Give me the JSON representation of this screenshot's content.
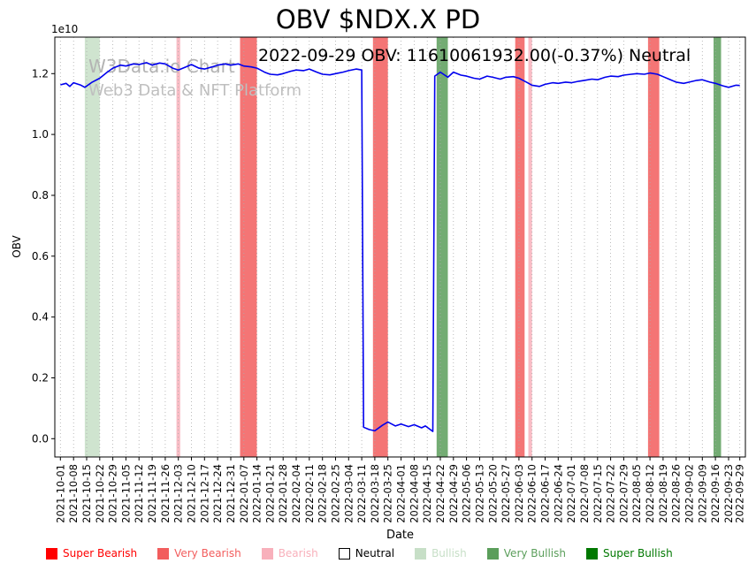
{
  "watermark": {
    "line1": "W3Data.io Chart",
    "line2": "Web3 Data & NFT Platform"
  },
  "chart_data": {
    "type": "line",
    "title": "OBV $NDX.X PD",
    "subtitle": "2022-09-29 OBV: 11610061932.00(-0.37%) Neutral",
    "xlabel": "Date",
    "ylabel": "OBV",
    "y_offset_label": "1e10",
    "y_unit_multiplier": 10000000000,
    "ylim": [
      -0.06,
      1.32
    ],
    "yticks": [
      0.0,
      0.2,
      0.4,
      0.6,
      0.8,
      1.0,
      1.2
    ],
    "xlim": [
      "2021-09-28",
      "2022-10-02"
    ],
    "grid": "vertical-dotted",
    "legend_position": "bottom",
    "x_tick_dates": [
      "2021-10-01",
      "2021-10-08",
      "2021-10-15",
      "2021-10-22",
      "2021-10-29",
      "2021-11-05",
      "2021-11-12",
      "2021-11-19",
      "2021-11-26",
      "2021-12-03",
      "2021-12-10",
      "2021-12-17",
      "2021-12-24",
      "2021-12-31",
      "2022-01-07",
      "2022-01-14",
      "2022-01-21",
      "2022-01-28",
      "2022-02-04",
      "2022-02-11",
      "2022-02-18",
      "2022-02-25",
      "2022-03-04",
      "2022-03-11",
      "2022-03-18",
      "2022-03-25",
      "2022-04-01",
      "2022-04-08",
      "2022-04-15",
      "2022-04-22",
      "2022-04-29",
      "2022-05-06",
      "2022-05-13",
      "2022-05-20",
      "2022-05-27",
      "2022-06-03",
      "2022-06-10",
      "2022-06-17",
      "2022-06-24",
      "2022-07-01",
      "2022-07-08",
      "2022-07-15",
      "2022-07-22",
      "2022-07-29",
      "2022-08-05",
      "2022-08-12",
      "2022-08-19",
      "2022-08-26",
      "2022-09-02",
      "2022-09-09",
      "2022-09-16",
      "2022-09-23",
      "2022-09-29"
    ],
    "series": [
      {
        "name": "OBV",
        "color": "#0000ee",
        "points": [
          [
            "2021-10-01",
            1.163
          ],
          [
            "2021-10-04",
            1.168
          ],
          [
            "2021-10-06",
            1.158
          ],
          [
            "2021-10-08",
            1.17
          ],
          [
            "2021-10-12",
            1.162
          ],
          [
            "2021-10-14",
            1.155
          ],
          [
            "2021-10-18",
            1.172
          ],
          [
            "2021-10-22",
            1.185
          ],
          [
            "2021-10-26",
            1.205
          ],
          [
            "2021-10-29",
            1.218
          ],
          [
            "2021-11-02",
            1.228
          ],
          [
            "2021-11-05",
            1.225
          ],
          [
            "2021-11-09",
            1.232
          ],
          [
            "2021-11-12",
            1.23
          ],
          [
            "2021-11-16",
            1.236
          ],
          [
            "2021-11-19",
            1.228
          ],
          [
            "2021-11-23",
            1.235
          ],
          [
            "2021-11-26",
            1.232
          ],
          [
            "2021-11-30",
            1.218
          ],
          [
            "2021-12-03",
            1.212
          ],
          [
            "2021-12-07",
            1.222
          ],
          [
            "2021-12-10",
            1.23
          ],
          [
            "2021-12-14",
            1.218
          ],
          [
            "2021-12-17",
            1.215
          ],
          [
            "2021-12-21",
            1.222
          ],
          [
            "2021-12-24",
            1.228
          ],
          [
            "2021-12-28",
            1.232
          ],
          [
            "2021-12-31",
            1.228
          ],
          [
            "2022-01-04",
            1.232
          ],
          [
            "2022-01-07",
            1.225
          ],
          [
            "2022-01-11",
            1.222
          ],
          [
            "2022-01-14",
            1.218
          ],
          [
            "2022-01-18",
            1.205
          ],
          [
            "2022-01-21",
            1.198
          ],
          [
            "2022-01-25",
            1.196
          ],
          [
            "2022-01-28",
            1.2
          ],
          [
            "2022-02-01",
            1.208
          ],
          [
            "2022-02-04",
            1.212
          ],
          [
            "2022-02-08",
            1.21
          ],
          [
            "2022-02-11",
            1.215
          ],
          [
            "2022-02-15",
            1.205
          ],
          [
            "2022-02-18",
            1.198
          ],
          [
            "2022-02-22",
            1.196
          ],
          [
            "2022-02-25",
            1.2
          ],
          [
            "2022-03-01",
            1.205
          ],
          [
            "2022-03-04",
            1.21
          ],
          [
            "2022-03-08",
            1.215
          ],
          [
            "2022-03-11",
            1.212
          ],
          [
            "2022-03-12",
            0.038
          ],
          [
            "2022-03-15",
            0.03
          ],
          [
            "2022-03-18",
            0.026
          ],
          [
            "2022-03-22",
            0.044
          ],
          [
            "2022-03-25",
            0.055
          ],
          [
            "2022-03-29",
            0.042
          ],
          [
            "2022-04-01",
            0.048
          ],
          [
            "2022-04-05",
            0.04
          ],
          [
            "2022-04-08",
            0.046
          ],
          [
            "2022-04-12",
            0.036
          ],
          [
            "2022-04-14",
            0.042
          ],
          [
            "2022-04-18",
            0.024
          ],
          [
            "2022-04-19",
            1.192
          ],
          [
            "2022-04-22",
            1.205
          ],
          [
            "2022-04-26",
            1.188
          ],
          [
            "2022-04-29",
            1.205
          ],
          [
            "2022-05-03",
            1.195
          ],
          [
            "2022-05-06",
            1.192
          ],
          [
            "2022-05-10",
            1.185
          ],
          [
            "2022-05-13",
            1.182
          ],
          [
            "2022-05-17",
            1.192
          ],
          [
            "2022-05-20",
            1.188
          ],
          [
            "2022-05-24",
            1.182
          ],
          [
            "2022-05-27",
            1.188
          ],
          [
            "2022-05-31",
            1.19
          ],
          [
            "2022-06-03",
            1.185
          ],
          [
            "2022-06-07",
            1.172
          ],
          [
            "2022-06-10",
            1.162
          ],
          [
            "2022-06-14",
            1.158
          ],
          [
            "2022-06-17",
            1.165
          ],
          [
            "2022-06-21",
            1.17
          ],
          [
            "2022-06-24",
            1.168
          ],
          [
            "2022-06-28",
            1.172
          ],
          [
            "2022-07-01",
            1.17
          ],
          [
            "2022-07-05",
            1.175
          ],
          [
            "2022-07-08",
            1.178
          ],
          [
            "2022-07-12",
            1.182
          ],
          [
            "2022-07-15",
            1.18
          ],
          [
            "2022-07-19",
            1.188
          ],
          [
            "2022-07-22",
            1.192
          ],
          [
            "2022-07-26",
            1.19
          ],
          [
            "2022-07-29",
            1.195
          ],
          [
            "2022-08-02",
            1.198
          ],
          [
            "2022-08-05",
            1.2
          ],
          [
            "2022-08-09",
            1.198
          ],
          [
            "2022-08-12",
            1.202
          ],
          [
            "2022-08-16",
            1.198
          ],
          [
            "2022-08-19",
            1.19
          ],
          [
            "2022-08-23",
            1.18
          ],
          [
            "2022-08-26",
            1.172
          ],
          [
            "2022-08-30",
            1.168
          ],
          [
            "2022-09-02",
            1.172
          ],
          [
            "2022-09-06",
            1.178
          ],
          [
            "2022-09-09",
            1.18
          ],
          [
            "2022-09-13",
            1.172
          ],
          [
            "2022-09-16",
            1.168
          ],
          [
            "2022-09-20",
            1.16
          ],
          [
            "2022-09-23",
            1.155
          ],
          [
            "2022-09-27",
            1.162
          ],
          [
            "2022-09-29",
            1.161
          ]
        ]
      }
    ],
    "bands": [
      {
        "start": "2021-10-14",
        "end": "2021-10-22",
        "label": "Bullish"
      },
      {
        "start": "2021-12-02",
        "end": "2021-12-04",
        "label": "Bearish"
      },
      {
        "start": "2022-01-05",
        "end": "2022-01-14",
        "label": "Very Bearish"
      },
      {
        "start": "2022-03-17",
        "end": "2022-03-25",
        "label": "Very Bearish"
      },
      {
        "start": "2022-04-20",
        "end": "2022-04-26",
        "label": "Very Bullish"
      },
      {
        "start": "2022-06-01",
        "end": "2022-06-06",
        "label": "Very Bearish"
      },
      {
        "start": "2022-06-08",
        "end": "2022-06-10",
        "label": "Bearish"
      },
      {
        "start": "2022-08-11",
        "end": "2022-08-17",
        "label": "Very Bearish"
      },
      {
        "start": "2022-09-15",
        "end": "2022-09-19",
        "label": "Very Bullish"
      }
    ],
    "legend": [
      {
        "label": "Super Bearish",
        "color": "#ff0000"
      },
      {
        "label": "Very Bearish",
        "color": "#f25d5d"
      },
      {
        "label": "Bearish",
        "color": "#f8b0bb"
      },
      {
        "label": "Neutral",
        "color": "#ffffff"
      },
      {
        "label": "Bullish",
        "color": "#c7dfc7"
      },
      {
        "label": "Very Bullish",
        "color": "#5b9e5b"
      },
      {
        "label": "Super Bullish",
        "color": "#007800"
      }
    ]
  }
}
